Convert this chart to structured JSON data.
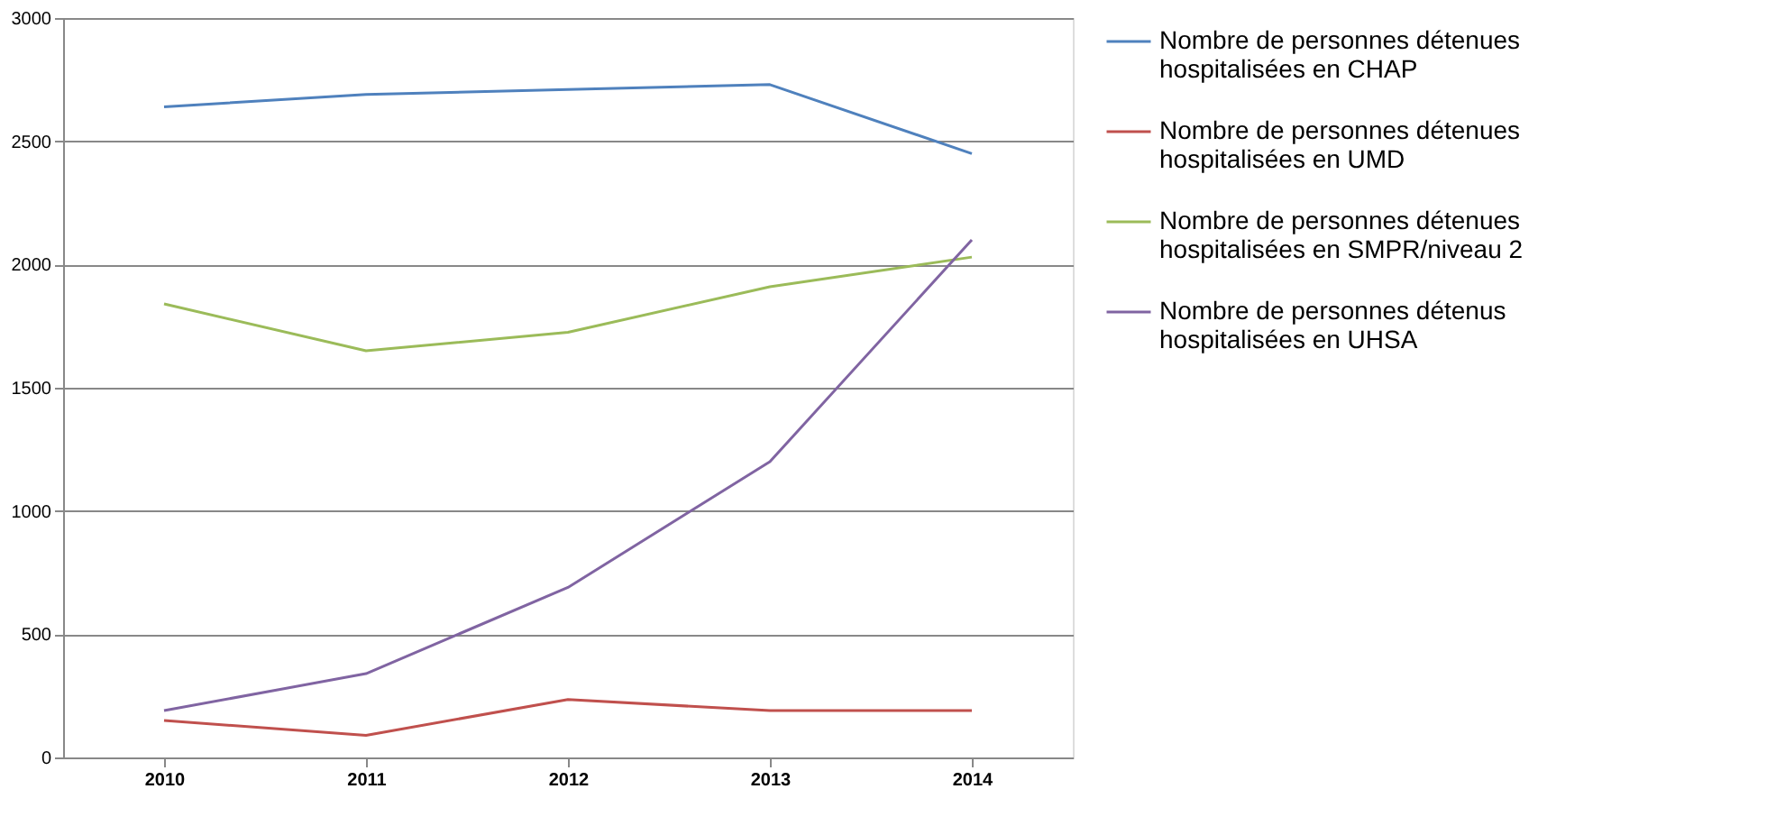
{
  "chart_data": {
    "type": "line",
    "categories": [
      "2010",
      "2011",
      "2012",
      "2013",
      "2014"
    ],
    "series": [
      {
        "name": "Nombre de personnes détenues hospitalisées en CHAP",
        "color": "#4f81bd",
        "values": [
          2640,
          2690,
          2710,
          2730,
          2450
        ]
      },
      {
        "name": "Nombre de personnes détenues hospitalisées en UMD",
        "color": "#c0504d",
        "values": [
          150,
          90,
          235,
          190,
          190
        ]
      },
      {
        "name": "Nombre de personnes détenues hospitalisées en SMPR/niveau 2",
        "color": "#9bbb59",
        "values": [
          1840,
          1650,
          1725,
          1910,
          2030
        ]
      },
      {
        "name": "Nombre de personnes détenus hospitalisées en UHSA",
        "color": "#8064a2",
        "values": [
          190,
          340,
          690,
          1200,
          2100
        ]
      }
    ],
    "ylim": [
      0,
      3000
    ],
    "yticks": [
      0,
      500,
      1000,
      1500,
      2000,
      2500,
      3000
    ],
    "grid": "y",
    "legend": "right",
    "marker": "none",
    "line_style": "solid"
  }
}
